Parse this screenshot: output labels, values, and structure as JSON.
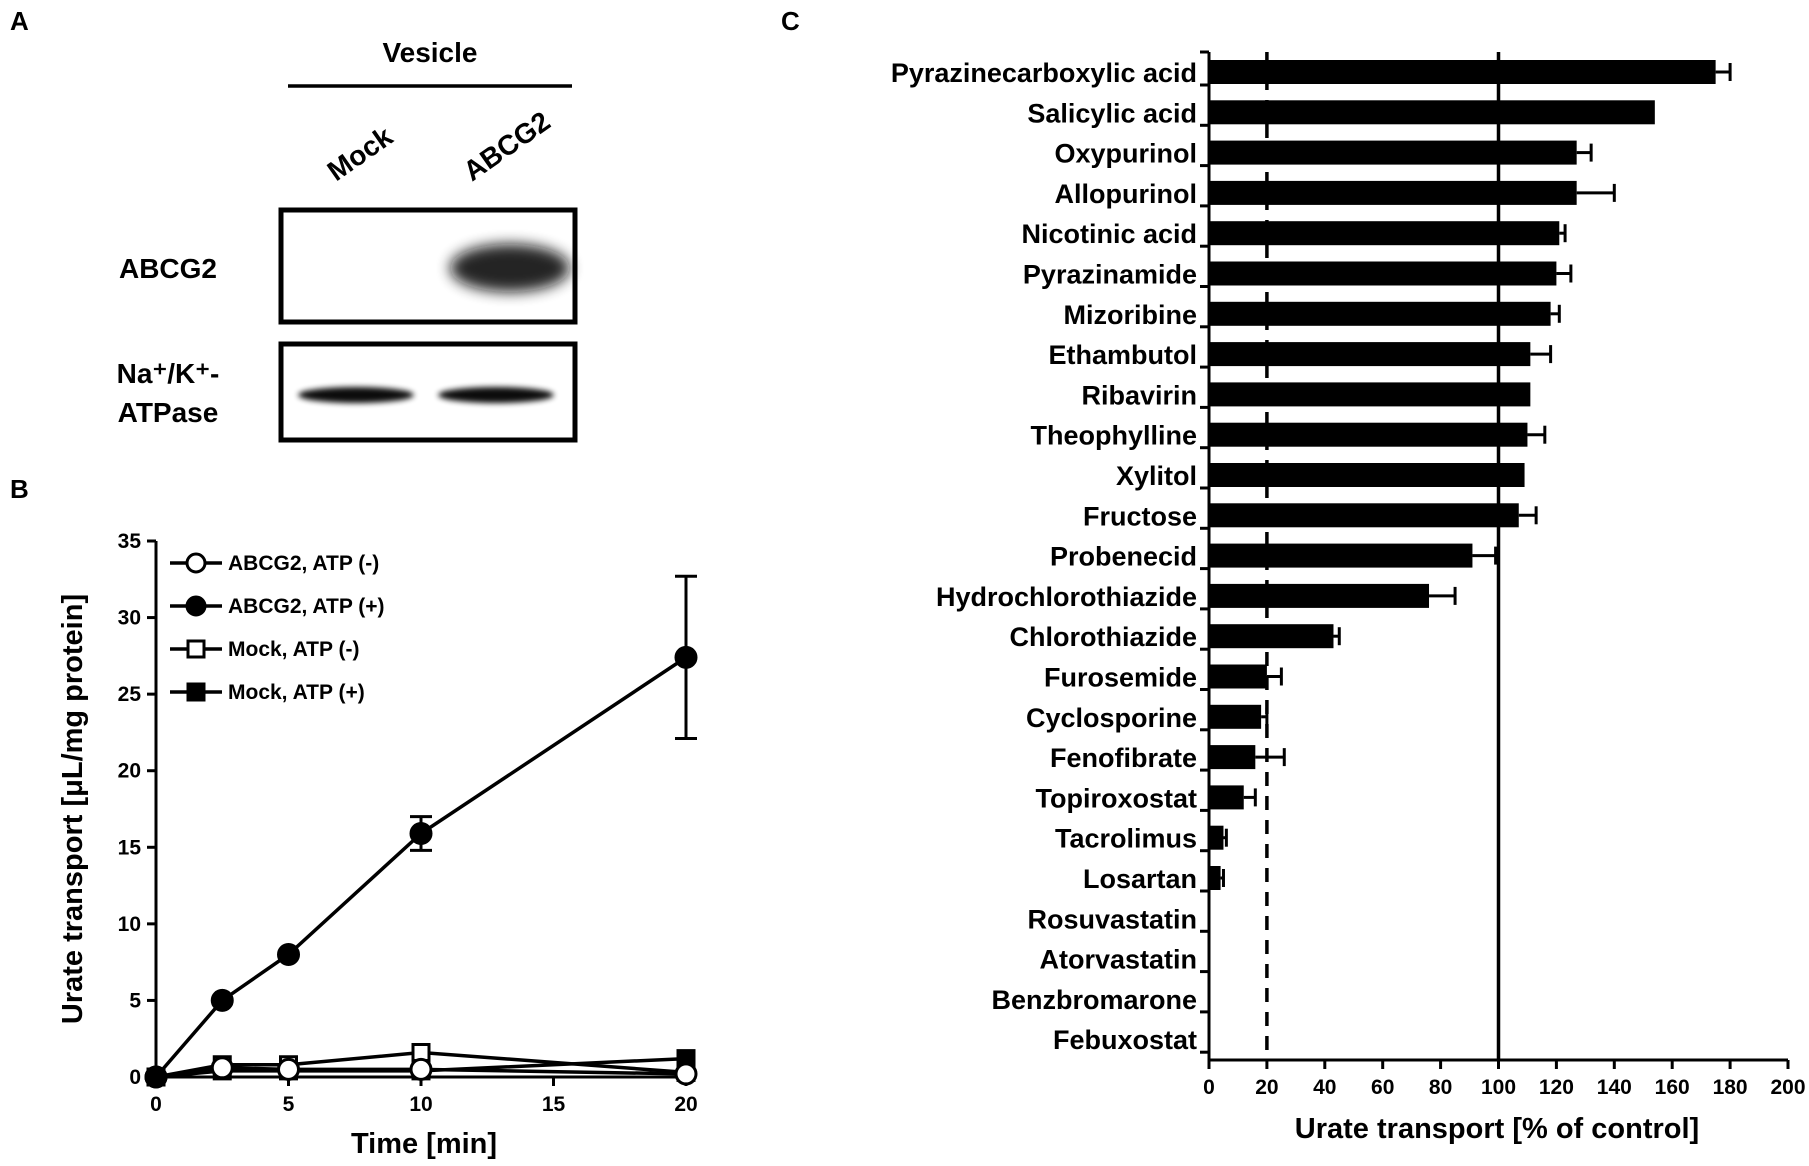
{
  "panels": {
    "a": {
      "letter": "A",
      "header": "Vesicle",
      "lanes": [
        "Mock",
        "ABCG2"
      ],
      "rows": [
        {
          "label": "ABCG2",
          "bands": [
            0.0,
            1.0
          ]
        },
        {
          "label_line1": "Na⁺/K⁺-",
          "label_line2": "ATPase",
          "bands": [
            1.0,
            1.0
          ]
        }
      ]
    },
    "b": {
      "letter": "B"
    },
    "c": {
      "letter": "C"
    }
  },
  "chart_data": [
    {
      "type": "line",
      "panel": "B",
      "title": "",
      "xlabel": "Time [min]",
      "ylabel": "Urate transport [μL/mg protein]",
      "xlim": [
        0,
        20
      ],
      "ylim": [
        0,
        35
      ],
      "xticks": [
        0,
        5,
        10,
        15,
        20
      ],
      "yticks": [
        0,
        5,
        10,
        15,
        20,
        25,
        30,
        35
      ],
      "x": [
        0,
        2.5,
        5,
        10,
        20
      ],
      "legend_position": "top-left",
      "series": [
        {
          "name": "ABCG2, ATP (-)",
          "marker": "circle-open",
          "values": [
            0,
            0.6,
            0.5,
            0.5,
            0.2
          ],
          "errors": [
            0,
            0.2,
            0.2,
            0.2,
            0.2
          ]
        },
        {
          "name": "ABCG2, ATP (+)",
          "marker": "circle-filled",
          "values": [
            0,
            5.0,
            8.0,
            15.9,
            27.4
          ],
          "errors": [
            0,
            0.2,
            0.2,
            1.1,
            5.3
          ]
        },
        {
          "name": "Mock, ATP (-)",
          "marker": "square-open",
          "values": [
            0,
            0.8,
            0.8,
            1.6,
            0.3
          ],
          "errors": [
            0,
            0.2,
            0.2,
            0.3,
            0.2
          ]
        },
        {
          "name": "Mock, ATP (+)",
          "marker": "square-filled",
          "values": [
            0,
            0.4,
            0.4,
            0.4,
            1.2
          ],
          "errors": [
            0,
            0.2,
            0.2,
            0.2,
            0.2
          ]
        }
      ]
    },
    {
      "type": "bar",
      "orientation": "horizontal",
      "panel": "C",
      "title": "",
      "xlabel": "Urate transport [% of control]",
      "ylabel": "",
      "xlim": [
        0,
        200
      ],
      "xticks": [
        0,
        20,
        40,
        60,
        80,
        100,
        120,
        140,
        160,
        180,
        200
      ],
      "reference_lines": [
        {
          "value": 20,
          "style": "dashed"
        },
        {
          "value": 100,
          "style": "solid"
        }
      ],
      "categories": [
        "Pyrazinecarboxylic acid",
        "Salicylic acid",
        "Oxypurinol",
        "Allopurinol",
        "Nicotinic acid",
        "Pyrazinamide",
        "Mizoribine",
        "Ethambutol",
        "Ribavirin",
        "Theophylline",
        "Xylitol",
        "Fructose",
        "Probenecid",
        "Hydrochlorothiazide",
        "Chlorothiazide",
        "Furosemide",
        "Cyclosporine",
        "Fenofibrate",
        "Topiroxostat",
        "Tacrolimus",
        "Losartan",
        "Rosuvastatin",
        "Atorvastatin",
        "Benzbromarone",
        "Febuxostat"
      ],
      "values": [
        175,
        154,
        127,
        127,
        121,
        120,
        118,
        111,
        111,
        110,
        109,
        107,
        91,
        76,
        43,
        20,
        18,
        16,
        12,
        5,
        4,
        0,
        0,
        0,
        0
      ],
      "errors": [
        5,
        0,
        5,
        13,
        2,
        5,
        3,
        7,
        0,
        6,
        0,
        6,
        8,
        9,
        2,
        5,
        2,
        10,
        4,
        1,
        1,
        0,
        0,
        0,
        0
      ]
    }
  ]
}
